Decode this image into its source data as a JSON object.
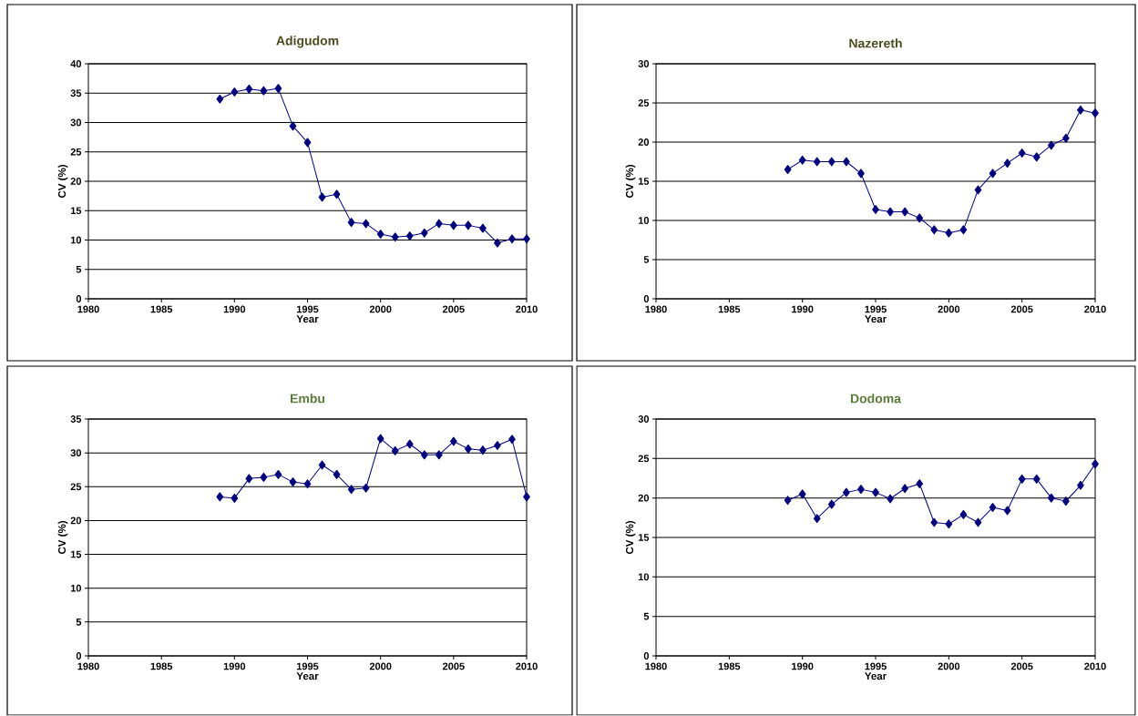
{
  "chart_data": [
    {
      "type": "line",
      "title": "Adigudom",
      "xlabel": "Year",
      "ylabel": "CV (%)",
      "x": [
        1989,
        1990,
        1991,
        1992,
        1993,
        1994,
        1995,
        1996,
        1997,
        1998,
        1999,
        2000,
        2001,
        2002,
        2003,
        2004,
        2005,
        2006,
        2007,
        2008,
        2009,
        2010
      ],
      "values": [
        34,
        35.2,
        35.7,
        35.4,
        35.8,
        29.4,
        26.6,
        17.3,
        17.8,
        13,
        12.8,
        11,
        10.5,
        10.7,
        11.2,
        12.8,
        12.5,
        12.5,
        12,
        9.5,
        10.2,
        10.2
      ],
      "color": "#000080",
      "marker": "diamond",
      "xlim": [
        1980,
        2010
      ],
      "ylim": [
        0,
        40
      ],
      "xticks": [
        1980,
        1985,
        1990,
        1995,
        2000,
        2005,
        2010
      ],
      "yticks": [
        0,
        5,
        10,
        15,
        20,
        25,
        30,
        35,
        40
      ],
      "grid": "y"
    },
    {
      "type": "line",
      "title": "Nazereth",
      "xlabel": "Year",
      "ylabel": "CV (%)",
      "x": [
        1989,
        1990,
        1991,
        1992,
        1993,
        1994,
        1995,
        1996,
        1997,
        1998,
        1999,
        2000,
        2001,
        2002,
        2003,
        2004,
        2005,
        2006,
        2007,
        2008,
        2009,
        2010
      ],
      "values": [
        16.5,
        17.7,
        17.5,
        17.5,
        17.5,
        16,
        11.4,
        11.1,
        11.1,
        10.3,
        8.8,
        8.4,
        8.8,
        13.9,
        16,
        17.3,
        18.6,
        18.1,
        19.6,
        20.5,
        24.1,
        23.7
      ],
      "color": "#000080",
      "marker": "diamond",
      "xlim": [
        1980,
        2010
      ],
      "ylim": [
        0,
        30
      ],
      "xticks": [
        1980,
        1985,
        1990,
        1995,
        2000,
        2005,
        2010
      ],
      "yticks": [
        0,
        5,
        10,
        15,
        20,
        25,
        30
      ],
      "grid": "y"
    },
    {
      "type": "line",
      "title": "Embu",
      "xlabel": "Year",
      "ylabel": "CV (%)",
      "x": [
        1989,
        1990,
        1991,
        1992,
        1993,
        1994,
        1995,
        1996,
        1997,
        1998,
        1999,
        2000,
        2001,
        2002,
        2003,
        2004,
        2005,
        2006,
        2007,
        2008,
        2009,
        2010
      ],
      "values": [
        23.5,
        23.3,
        26.2,
        26.4,
        26.8,
        25.7,
        25.4,
        28.2,
        26.8,
        24.6,
        24.8,
        32.1,
        30.3,
        31.3,
        29.7,
        29.7,
        31.7,
        30.6,
        30.4,
        31.1,
        32,
        23.5
      ],
      "color": "#000080",
      "marker": "diamond",
      "xlim": [
        1980,
        2010
      ],
      "ylim": [
        0,
        35
      ],
      "xticks": [
        1980,
        1985,
        1990,
        1995,
        2000,
        2005,
        2010
      ],
      "yticks": [
        0,
        5,
        10,
        15,
        20,
        25,
        30,
        35
      ],
      "grid": "y"
    },
    {
      "type": "line",
      "title": "Dodoma",
      "xlabel": "Year",
      "ylabel": "CV (%)",
      "x": [
        1989,
        1990,
        1991,
        1992,
        1993,
        1994,
        1995,
        1996,
        1997,
        1998,
        1999,
        2000,
        2001,
        2002,
        2003,
        2004,
        2005,
        2006,
        2007,
        2008,
        2009,
        2010
      ],
      "values": [
        19.7,
        20.5,
        17.4,
        19.2,
        20.7,
        21.1,
        20.7,
        19.9,
        21.2,
        21.8,
        16.9,
        16.7,
        17.9,
        16.9,
        18.8,
        18.4,
        22.4,
        22.4,
        20,
        19.6,
        21.6,
        24.3
      ],
      "color": "#000080",
      "marker": "diamond",
      "xlim": [
        1980,
        2010
      ],
      "ylim": [
        0,
        30
      ],
      "xticks": [
        1980,
        1985,
        1990,
        1995,
        2000,
        2005,
        2010
      ],
      "yticks": [
        0,
        5,
        10,
        15,
        20,
        25,
        30
      ],
      "grid": "y"
    }
  ]
}
